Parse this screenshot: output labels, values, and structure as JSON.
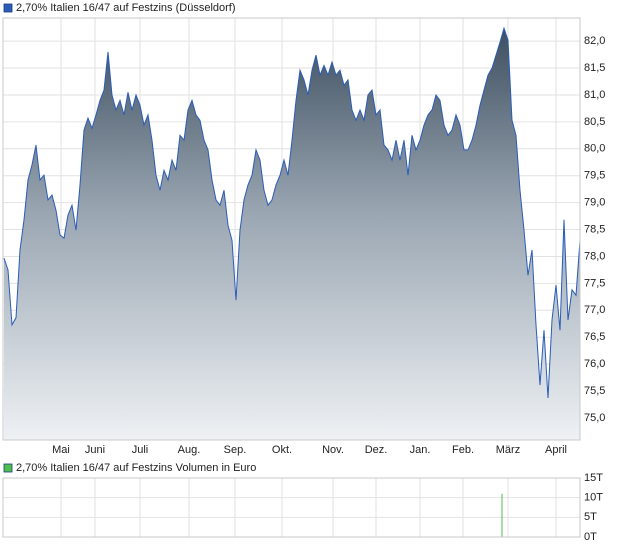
{
  "chart_data": [
    {
      "type": "area",
      "title": "2,70% Italien 16/47 auf Festzins (Düsseldorf)",
      "series": [
        {
          "name": "2,70% Italien 16/47 auf Festzins (Düsseldorf)",
          "color": "#2a5cb8",
          "x": [
            0,
            1,
            2,
            3,
            4,
            5,
            6,
            7,
            8,
            9,
            10,
            11,
            12,
            13,
            14,
            15,
            16,
            17,
            18,
            19,
            20,
            21,
            22,
            23,
            24,
            25,
            26,
            27,
            28,
            29,
            30,
            31,
            32,
            33,
            34,
            35,
            36,
            37,
            38,
            39,
            40,
            41,
            42,
            43,
            44,
            45,
            46,
            47,
            48,
            49,
            50,
            51,
            52,
            53,
            54,
            55,
            56,
            57,
            58,
            59,
            60,
            61,
            62,
            63,
            64,
            65,
            66,
            67,
            68,
            69,
            70,
            71,
            72,
            73,
            74,
            75,
            76,
            77,
            78,
            79,
            80,
            81,
            82,
            83,
            84,
            85,
            86,
            87,
            88,
            89,
            90,
            91,
            92,
            93,
            94,
            95,
            96,
            97,
            98,
            99,
            100,
            101,
            102,
            103,
            104,
            105,
            106,
            107,
            108,
            109,
            110,
            111,
            112,
            113,
            114,
            115,
            116,
            117,
            118,
            119,
            120,
            121,
            122,
            123,
            124,
            125,
            126,
            127,
            128,
            129,
            130,
            131,
            132,
            133,
            134,
            135,
            136,
            137,
            138,
            139,
            140,
            141,
            142,
            143,
            144
          ],
          "values": [
            77.97,
            77.75,
            76.73,
            76.86,
            78.12,
            78.68,
            79.42,
            79.7,
            80.07,
            79.42,
            79.51,
            79.05,
            79.14,
            78.86,
            78.4,
            78.34,
            78.77,
            78.95,
            78.49,
            79.33,
            80.35,
            80.57,
            80.38,
            80.63,
            80.9,
            81.09,
            81.8,
            81.0,
            80.72,
            80.9,
            80.63,
            81.05,
            80.72,
            81.0,
            80.81,
            80.44,
            80.63,
            80.16,
            79.51,
            79.23,
            79.6,
            79.42,
            79.79,
            79.6,
            80.25,
            80.16,
            80.72,
            80.9,
            80.63,
            80.53,
            80.16,
            79.98,
            79.42,
            79.05,
            78.95,
            79.23,
            78.58,
            78.3,
            77.19,
            78.49,
            79.05,
            79.33,
            79.51,
            79.98,
            79.79,
            79.23,
            78.95,
            79.05,
            79.33,
            79.51,
            79.79,
            79.51,
            80.16,
            80.9,
            81.46,
            81.28,
            81.0,
            81.46,
            81.74,
            81.37,
            81.55,
            81.37,
            81.61,
            81.37,
            81.46,
            81.18,
            81.28,
            80.72,
            80.53,
            80.72,
            80.53,
            81.0,
            81.09,
            80.63,
            80.72,
            80.07,
            79.98,
            79.79,
            80.16,
            79.79,
            80.16,
            79.51,
            80.25,
            79.98,
            80.16,
            80.44,
            80.63,
            80.72,
            81.0,
            80.9,
            80.44,
            80.25,
            80.35,
            80.63,
            80.44,
            79.98,
            79.98,
            80.16,
            80.44,
            80.81,
            81.09,
            81.37,
            81.5,
            81.74,
            81.98,
            82.24,
            82.02,
            80.53,
            80.25,
            79.23,
            78.49,
            77.65,
            78.12,
            76.73,
            75.61,
            76.63,
            75.37,
            76.82,
            77.47,
            76.63,
            78.68,
            76.82,
            77.38,
            77.28,
            78.3
          ]
        }
      ],
      "xlim": [
        -0.25,
        144
      ],
      "xticks": [
        {
          "value": 14.25,
          "label": "Mai"
        },
        {
          "value": 22.75,
          "label": "Juni"
        },
        {
          "value": 34,
          "label": "Juli"
        },
        {
          "value": 46.25,
          "label": "Aug."
        },
        {
          "value": 57.75,
          "label": "Sep."
        },
        {
          "value": 69.5,
          "label": "Okt."
        },
        {
          "value": 82.25,
          "label": "Nov."
        },
        {
          "value": 93,
          "label": "Dez."
        },
        {
          "value": 104,
          "label": "Jan."
        },
        {
          "value": 114.75,
          "label": "Feb."
        },
        {
          "value": 126,
          "label": "März"
        },
        {
          "value": 138,
          "label": "April"
        }
      ],
      "ylim": [
        74.59,
        82.43
      ],
      "yticks": [
        {
          "value": 75,
          "label": "75,0"
        },
        {
          "value": 75.5,
          "label": "75,5"
        },
        {
          "value": 76,
          "label": "76,0"
        },
        {
          "value": 76.5,
          "label": "76,5"
        },
        {
          "value": 77,
          "label": "77,0"
        },
        {
          "value": 77.5,
          "label": "77,5"
        },
        {
          "value": 78,
          "label": "78,0"
        },
        {
          "value": 78.5,
          "label": "78,5"
        },
        {
          "value": 79,
          "label": "79,0"
        },
        {
          "value": 79.5,
          "label": "79,5"
        },
        {
          "value": 80,
          "label": "80,0"
        },
        {
          "value": 80.5,
          "label": "80,5"
        },
        {
          "value": 81,
          "label": "81,0"
        },
        {
          "value": 81.5,
          "label": "81,5"
        },
        {
          "value": 82,
          "label": "82,0"
        }
      ],
      "grid": true
    },
    {
      "type": "bar",
      "title": "2,70% Italien 16/47 auf Festzins Volumen in Euro",
      "series": [
        {
          "name": "2,70% Italien 16/47 auf Festzins Volumen in Euro",
          "color": "#4cbf4c",
          "x": [
            124.5
          ],
          "values": [
            11
          ]
        }
      ],
      "xlim": [
        -0.25,
        144
      ],
      "xticks": [
        {
          "value": 14.25,
          "label": "Mai"
        },
        {
          "value": 22.75,
          "label": "Juni"
        },
        {
          "value": 34,
          "label": "Juli"
        },
        {
          "value": 46.25,
          "label": "Aug."
        },
        {
          "value": 57.75,
          "label": "Sep."
        },
        {
          "value": 69.5,
          "label": "Okt."
        },
        {
          "value": 82.25,
          "label": "Nov."
        },
        {
          "value": 93,
          "label": "Dez."
        },
        {
          "value": 104,
          "label": "Jan."
        },
        {
          "value": 114.75,
          "label": "Feb."
        },
        {
          "value": 126,
          "label": "März"
        },
        {
          "value": 138,
          "label": "April"
        }
      ],
      "ylim": [
        0,
        15
      ],
      "yticks": [
        {
          "value": 0,
          "label": "0T"
        },
        {
          "value": 5,
          "label": "5T"
        },
        {
          "value": 10,
          "label": "10T"
        },
        {
          "value": 15,
          "label": "15T"
        }
      ],
      "grid": true
    }
  ]
}
